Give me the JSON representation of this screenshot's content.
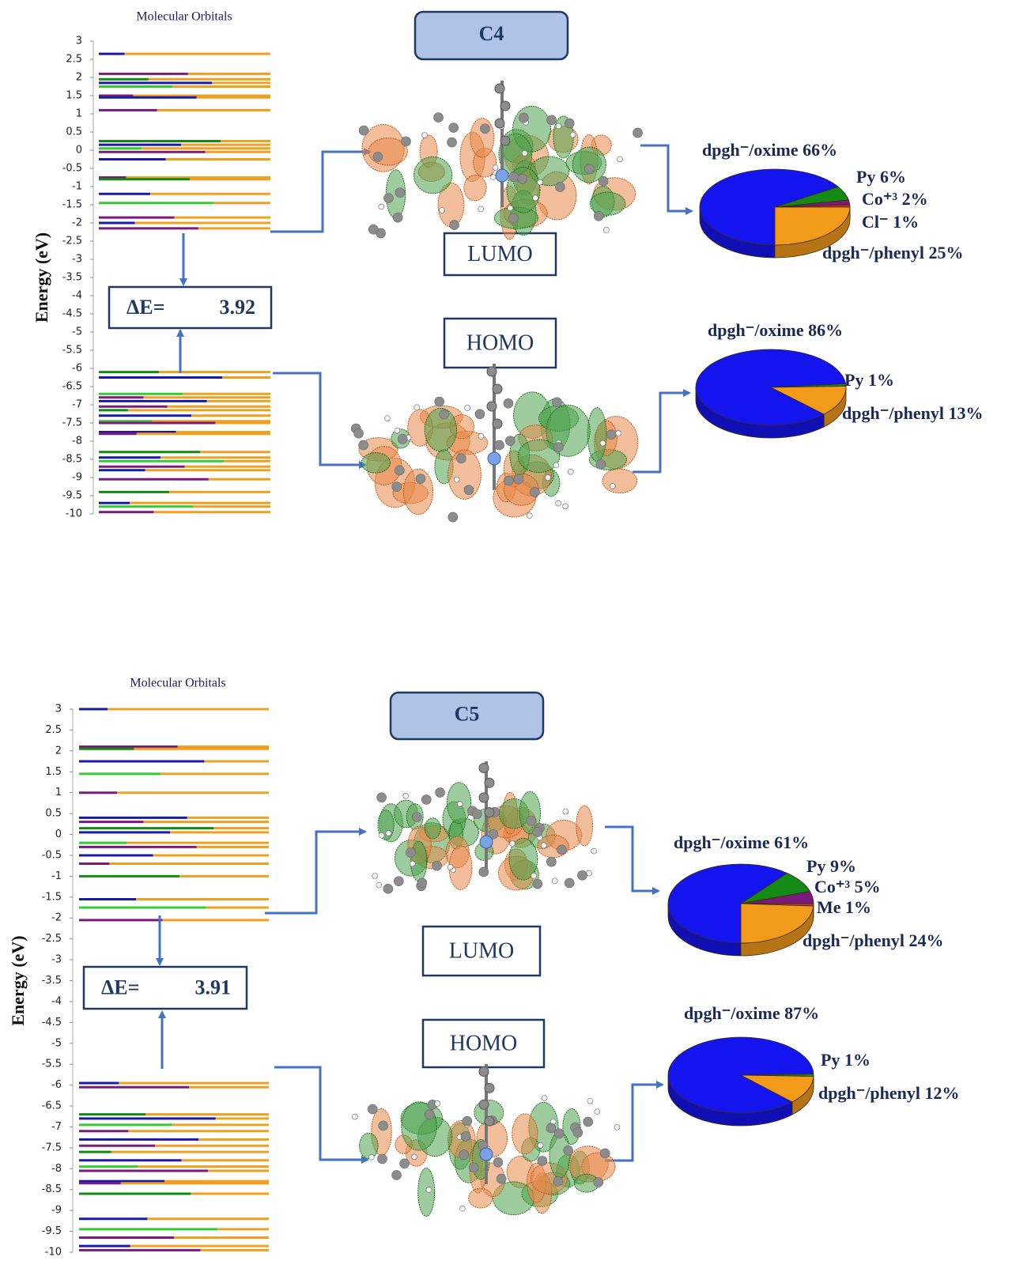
{
  "panels": [
    {
      "title": "C4",
      "mo_title": "Molecular Orbitals",
      "axis_label": "Energy (eV)",
      "yticks": [
        3,
        2.5,
        2,
        1.5,
        1,
        0.5,
        0,
        -0.5,
        -1,
        -1.5,
        -2,
        -2.5,
        -3,
        -3.5,
        -4,
        -4.5,
        -5,
        -5.5,
        -6,
        -6.5,
        -7,
        -7.5,
        -8,
        -8.5,
        -9,
        -9.5,
        -10
      ],
      "levels": [
        2.65,
        2.1,
        1.95,
        1.85,
        1.75,
        1.5,
        1.45,
        1.1,
        0.25,
        0.15,
        0.05,
        -0.05,
        -0.25,
        -0.75,
        -0.8,
        -1.2,
        -1.45,
        -1.85,
        -2.0,
        -2.15,
        -6.1,
        -6.25,
        -6.7,
        -6.8,
        -6.9,
        -7.05,
        -7.15,
        -7.3,
        -7.45,
        -7.5,
        -7.75,
        -7.8,
        -8.3,
        -8.45,
        -8.55,
        -8.7,
        -8.8,
        -9.05,
        -9.4,
        -9.7,
        -9.8,
        -9.95
      ],
      "delta_e_label": "ΔE=",
      "delta_e": 3.92,
      "lumo_label": "LUMO",
      "homo_label": "HOMO",
      "lumo_pie": {
        "slices": [
          {
            "label": "dpgh⁻/oxime 66%",
            "value": 66,
            "color": "#1414ee"
          },
          {
            "label": "Py 6%",
            "value": 6,
            "color": "#138a13"
          },
          {
            "label": "Co⁺³ 2%",
            "value": 2,
            "color": "#7a1a7a"
          },
          {
            "label": "Cl⁻ 1%",
            "value": 1,
            "color": "#c83232"
          },
          {
            "label": "dpgh⁻/phenyl 25%",
            "value": 25,
            "color": "#f29a1a"
          }
        ]
      },
      "homo_pie": {
        "slices": [
          {
            "label": "dpgh⁻/oxime 86%",
            "value": 86,
            "color": "#1414ee"
          },
          {
            "label": "Py 1%",
            "value": 1,
            "color": "#138a13"
          },
          {
            "label": "dpgh⁻/phenyl 13%",
            "value": 13,
            "color": "#f29a1a"
          }
        ]
      }
    },
    {
      "title": "C5",
      "mo_title": "Molecular Orbitals",
      "axis_label": "Energy (eV)",
      "yticks": [
        3,
        2.5,
        2,
        1.5,
        1,
        0.5,
        0,
        -0.5,
        -1,
        -1.5,
        -2,
        -2.5,
        -3,
        -3.5,
        -4,
        -4.5,
        -5,
        -5.5,
        -6,
        -6.5,
        -7,
        -7.5,
        -8,
        -8.5,
        -9,
        -9.5,
        -10
      ],
      "levels": [
        3.0,
        2.1,
        2.05,
        1.75,
        1.45,
        1.0,
        0.4,
        0.3,
        0.15,
        0.05,
        -0.2,
        -0.3,
        -0.5,
        -0.7,
        -1.0,
        -1.55,
        -1.75,
        -2.05,
        -5.95,
        -6.05,
        -6.7,
        -6.8,
        -6.95,
        -7.1,
        -7.3,
        -7.45,
        -7.6,
        -7.8,
        -7.95,
        -8.05,
        -8.3,
        -8.35,
        -8.6,
        -9.2,
        -9.45,
        -9.65,
        -9.85,
        -9.95
      ],
      "delta_e_label": "ΔE=",
      "delta_e": 3.91,
      "lumo_label": "LUMO",
      "homo_label": "HOMO",
      "lumo_pie": {
        "slices": [
          {
            "label": "dpgh⁻/oxime 61%",
            "value": 61,
            "color": "#1414ee"
          },
          {
            "label": "Py 9%",
            "value": 9,
            "color": "#138a13"
          },
          {
            "label": "Co⁺³ 5%",
            "value": 5,
            "color": "#7a1a7a"
          },
          {
            "label": "Me 1%",
            "value": 1,
            "color": "#c83232"
          },
          {
            "label": "dpgh⁻/phenyl 24%",
            "value": 24,
            "color": "#f29a1a"
          }
        ]
      },
      "homo_pie": {
        "slices": [
          {
            "label": "dpgh⁻/oxime 87%",
            "value": 87,
            "color": "#1414ee"
          },
          {
            "label": "Py 1%",
            "value": 1,
            "color": "#138a13"
          },
          {
            "label": "dpgh⁻/phenyl 12%",
            "value": 12,
            "color": "#f29a1a"
          }
        ]
      }
    }
  ]
}
